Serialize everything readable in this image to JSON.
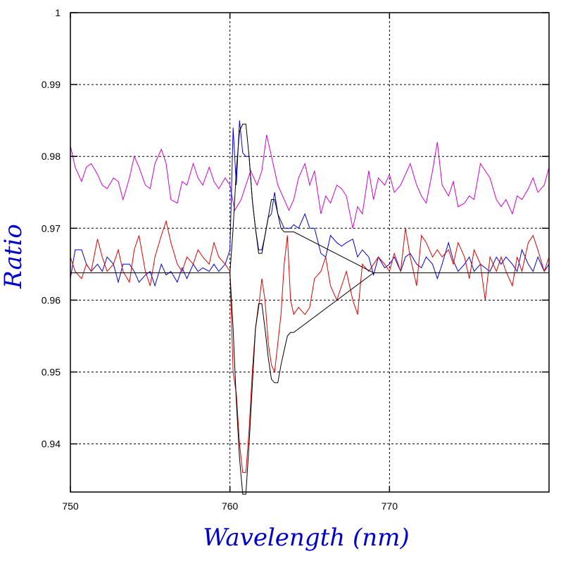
{
  "chart_data": {
    "type": "line",
    "xlabel": "Wavelength (nm)",
    "ylabel": "Ratio",
    "xlim": [
      750,
      780
    ],
    "ylim": [
      0.9333,
      1.0
    ],
    "xticks": [
      750,
      760,
      770
    ],
    "yticks": [
      0.94,
      0.95,
      0.96,
      0.97,
      0.98,
      0.99,
      1
    ],
    "xtick_labels": [
      "750",
      "760",
      "770"
    ],
    "ytick_labels": [
      "0.94",
      "0.95",
      "0.96",
      "0.97",
      "0.98",
      "0.99",
      "1"
    ],
    "grid": true,
    "legend": "none",
    "series": [
      {
        "color": "#d000d0",
        "x": [
          750.0,
          750.3,
          750.7,
          751.0,
          751.3,
          751.7,
          752.0,
          752.3,
          752.7,
          753.0,
          753.3,
          753.7,
          754.0,
          754.3,
          754.7,
          755.0,
          755.3,
          755.7,
          756.0,
          756.3,
          756.7,
          757.0,
          757.3,
          757.7,
          758.0,
          758.3,
          758.7,
          759.0,
          759.3,
          759.7,
          760.0,
          760.3,
          760.7,
          761.0,
          761.3,
          761.7,
          762.0,
          762.3,
          762.7,
          763.0,
          763.3,
          763.7,
          764.0,
          764.3,
          764.7,
          765.0,
          765.3,
          765.7,
          766.0,
          766.3,
          766.7,
          767.0,
          767.3,
          767.7,
          768.0,
          768.3,
          768.7,
          769.0,
          769.3,
          769.7,
          770.0,
          770.3,
          770.7,
          771.0,
          771.3,
          771.7,
          772.0,
          772.3,
          772.7,
          773.0,
          773.3,
          773.7,
          774.0,
          774.3,
          774.7,
          775.0,
          775.3,
          775.7,
          776.0,
          776.3,
          776.7,
          777.0,
          777.3,
          777.7,
          778.0,
          778.3,
          778.7,
          779.0,
          779.3,
          779.7,
          780.0
        ],
        "y": [
          0.9815,
          0.9785,
          0.9765,
          0.9785,
          0.979,
          0.9775,
          0.976,
          0.9755,
          0.977,
          0.9765,
          0.974,
          0.977,
          0.98,
          0.9785,
          0.976,
          0.9755,
          0.979,
          0.981,
          0.979,
          0.974,
          0.9735,
          0.9765,
          0.976,
          0.979,
          0.977,
          0.976,
          0.9785,
          0.9765,
          0.9755,
          0.977,
          0.976,
          0.9725,
          0.974,
          0.976,
          0.978,
          0.976,
          0.978,
          0.983,
          0.979,
          0.976,
          0.9745,
          0.9725,
          0.974,
          0.977,
          0.979,
          0.976,
          0.978,
          0.972,
          0.9745,
          0.9735,
          0.976,
          0.9755,
          0.9745,
          0.97,
          0.973,
          0.972,
          0.978,
          0.974,
          0.977,
          0.976,
          0.9775,
          0.975,
          0.976,
          0.9775,
          0.979,
          0.976,
          0.9745,
          0.9735,
          0.978,
          0.982,
          0.976,
          0.9745,
          0.9765,
          0.973,
          0.9735,
          0.9745,
          0.974,
          0.979,
          0.978,
          0.977,
          0.974,
          0.973,
          0.974,
          0.972,
          0.9745,
          0.974,
          0.9755,
          0.977,
          0.975,
          0.976,
          0.9785
        ]
      },
      {
        "color": "#0000e0",
        "x": [
          750.0,
          750.3,
          750.7,
          751.0,
          751.3,
          751.7,
          752.0,
          752.3,
          752.7,
          753.0,
          753.3,
          753.7,
          754.0,
          754.3,
          754.7,
          755.0,
          755.3,
          755.7,
          756.0,
          756.3,
          756.7,
          757.0,
          757.3,
          757.7,
          758.0,
          758.3,
          758.7,
          759.0,
          759.3,
          759.7,
          760.0,
          760.2,
          760.4,
          760.6,
          760.8,
          761.0,
          761.2,
          761.4,
          761.6,
          761.8,
          762.0,
          762.2,
          762.4,
          762.6,
          762.8,
          763.0,
          763.2,
          763.4,
          763.6,
          763.8,
          764.0,
          764.3,
          764.7,
          765.0,
          765.3,
          765.7,
          766.0,
          766.3,
          766.7,
          767.0,
          767.3,
          767.7,
          768.0,
          768.3,
          768.7,
          769.0,
          769.3,
          769.7,
          770.0,
          770.3,
          770.7,
          771.0,
          771.3,
          771.7,
          772.0,
          772.3,
          772.7,
          773.0,
          773.3,
          773.7,
          774.0,
          774.3,
          774.7,
          775.0,
          775.3,
          775.7,
          776.0,
          776.3,
          776.7,
          777.0,
          777.3,
          777.7,
          778.0,
          778.3,
          778.7,
          779.0,
          779.3,
          779.7,
          780.0
        ],
        "y": [
          0.963,
          0.967,
          0.967,
          0.965,
          0.964,
          0.965,
          0.964,
          0.966,
          0.965,
          0.9625,
          0.965,
          0.965,
          0.964,
          0.9625,
          0.9635,
          0.964,
          0.962,
          0.965,
          0.9635,
          0.964,
          0.9625,
          0.9645,
          0.963,
          0.965,
          0.964,
          0.9645,
          0.964,
          0.965,
          0.964,
          0.965,
          0.967,
          0.984,
          0.976,
          0.985,
          0.9805,
          0.98,
          0.98,
          0.974,
          0.97,
          0.967,
          0.967,
          0.969,
          0.9715,
          0.972,
          0.975,
          0.972,
          0.971,
          0.97,
          0.97,
          0.97,
          0.9705,
          0.97,
          0.972,
          0.97,
          0.97,
          0.9665,
          0.966,
          0.969,
          0.968,
          0.9675,
          0.968,
          0.9685,
          0.966,
          0.967,
          0.966,
          0.9635,
          0.966,
          0.9645,
          0.965,
          0.966,
          0.964,
          0.966,
          0.9665,
          0.965,
          0.9645,
          0.966,
          0.965,
          0.963,
          0.965,
          0.968,
          0.9655,
          0.964,
          0.965,
          0.966,
          0.964,
          0.965,
          0.9645,
          0.964,
          0.966,
          0.965,
          0.966,
          0.965,
          0.964,
          0.967,
          0.965,
          0.964,
          0.966,
          0.964,
          0.965
        ]
      },
      {
        "color": "#e00000",
        "x": [
          750.0,
          750.3,
          750.7,
          751.0,
          751.3,
          751.7,
          752.0,
          752.3,
          752.7,
          753.0,
          753.3,
          753.7,
          754.0,
          754.3,
          754.7,
          755.0,
          755.3,
          755.7,
          756.0,
          756.3,
          756.7,
          757.0,
          757.3,
          757.7,
          758.0,
          758.3,
          758.7,
          759.0,
          759.3,
          759.7,
          760.0,
          760.2,
          760.4,
          760.6,
          760.8,
          761.0,
          761.2,
          761.4,
          761.6,
          761.8,
          762.0,
          762.2,
          762.4,
          762.6,
          762.8,
          763.0,
          763.2,
          763.4,
          763.6,
          763.8,
          764.0,
          764.3,
          764.7,
          765.0,
          765.3,
          765.7,
          766.0,
          766.3,
          766.7,
          767.0,
          767.3,
          767.7,
          768.0,
          768.3,
          768.7,
          769.0,
          769.3,
          769.7,
          770.0,
          770.3,
          770.7,
          771.0,
          771.3,
          771.7,
          772.0,
          772.3,
          772.7,
          773.0,
          773.3,
          773.7,
          774.0,
          774.3,
          774.7,
          775.0,
          775.3,
          775.7,
          776.0,
          776.3,
          776.7,
          777.0,
          777.3,
          777.7,
          778.0,
          778.3,
          778.7,
          779.0,
          779.3,
          779.7,
          780.0
        ],
        "y": [
          0.966,
          0.964,
          0.963,
          0.965,
          0.964,
          0.9685,
          0.966,
          0.964,
          0.965,
          0.967,
          0.964,
          0.9625,
          0.967,
          0.969,
          0.964,
          0.962,
          0.966,
          0.969,
          0.971,
          0.968,
          0.965,
          0.964,
          0.966,
          0.965,
          0.967,
          0.966,
          0.965,
          0.968,
          0.966,
          0.965,
          0.964,
          0.95,
          0.947,
          0.94,
          0.936,
          0.936,
          0.942,
          0.95,
          0.956,
          0.959,
          0.963,
          0.96,
          0.954,
          0.951,
          0.95,
          0.954,
          0.958,
          0.965,
          0.969,
          0.96,
          0.958,
          0.959,
          0.958,
          0.959,
          0.963,
          0.964,
          0.966,
          0.962,
          0.96,
          0.962,
          0.964,
          0.96,
          0.958,
          0.965,
          0.964,
          0.965,
          0.966,
          0.965,
          0.964,
          0.9665,
          0.964,
          0.97,
          0.966,
          0.962,
          0.969,
          0.968,
          0.966,
          0.967,
          0.966,
          0.967,
          0.965,
          0.968,
          0.966,
          0.963,
          0.967,
          0.965,
          0.96,
          0.966,
          0.964,
          0.966,
          0.964,
          0.962,
          0.966,
          0.964,
          0.968,
          0.969,
          0.967,
          0.964,
          0.966
        ]
      },
      {
        "color": "#000000",
        "x": [
          750.0,
          760.0,
          760.2,
          760.4,
          760.6,
          760.8,
          761.0,
          761.2,
          761.4,
          761.6,
          761.8,
          762.0,
          762.2,
          762.4,
          762.6,
          762.8,
          763.0,
          763.2,
          763.4,
          763.6,
          763.8,
          764.0,
          769.0,
          780.0
        ],
        "y": [
          0.9638,
          0.9638,
          0.97,
          0.978,
          0.9835,
          0.9845,
          0.9845,
          0.98,
          0.974,
          0.97,
          0.9665,
          0.9665,
          0.969,
          0.9715,
          0.974,
          0.974,
          0.972,
          0.97,
          0.9695,
          0.9695,
          0.9695,
          0.9695,
          0.9638,
          0.9638
        ]
      },
      {
        "color": "#000000",
        "x": [
          760.0,
          760.2,
          760.4,
          760.6,
          760.8,
          761.0,
          761.2,
          761.4,
          761.6,
          761.8,
          762.0,
          762.2,
          762.4,
          762.6,
          762.8,
          763.0,
          763.2,
          763.4,
          763.6,
          763.8,
          764.0,
          769.0
        ],
        "y": [
          0.9638,
          0.956,
          0.946,
          0.938,
          0.933,
          0.933,
          0.94,
          0.948,
          0.956,
          0.9595,
          0.9595,
          0.956,
          0.952,
          0.949,
          0.9485,
          0.9485,
          0.951,
          0.953,
          0.955,
          0.9555,
          0.9555,
          0.9638
        ]
      }
    ]
  }
}
